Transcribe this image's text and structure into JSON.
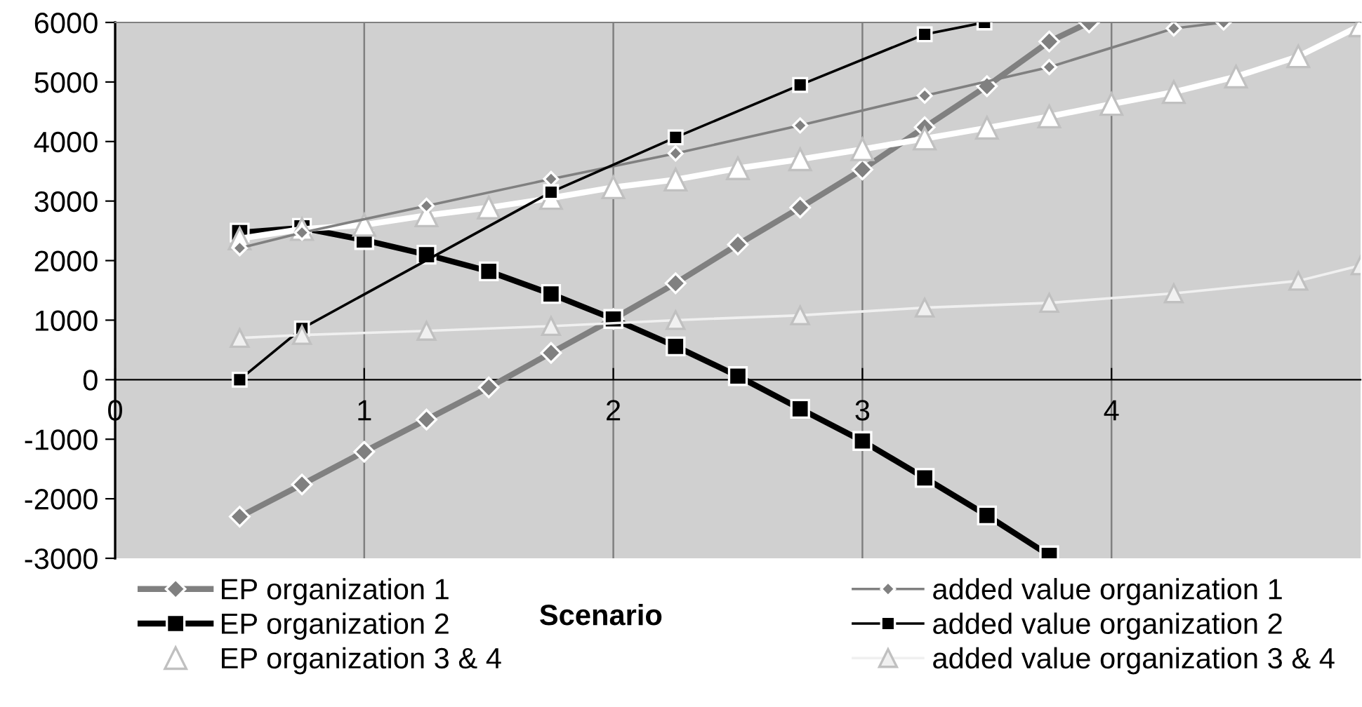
{
  "chart_data": {
    "type": "line",
    "xlabel": "Scenario",
    "xlim": [
      0,
      5
    ],
    "ylim": [
      -3000,
      6000
    ],
    "xticks": [
      0,
      1,
      2,
      3,
      4
    ],
    "yticks": [
      -3000,
      -2000,
      -1000,
      0,
      1000,
      2000,
      3000,
      4000,
      5000,
      6000
    ],
    "grid": "x",
    "legend": "bottom",
    "series": [
      {
        "name": "EP organization 1",
        "color": "#808080",
        "marker": "diamond",
        "x": [
          0.5,
          0.75,
          1,
          1.25,
          1.5,
          1.75,
          2,
          2.25,
          2.5,
          2.75,
          3,
          3.25,
          3.5,
          3.75,
          3.91
        ],
        "values": [
          -2300,
          -1760,
          -1210,
          -670,
          -130,
          450,
          1020,
          1620,
          2270,
          2890,
          3530,
          4240,
          4930,
          5680,
          6000
        ]
      },
      {
        "name": "EP organization 2",
        "color": "#000000",
        "marker": "square",
        "x": [
          0.5,
          0.75,
          1,
          1.25,
          1.5,
          1.75,
          2,
          2.25,
          2.5,
          2.75,
          3,
          3.25,
          3.5,
          3.75
        ],
        "values": [
          2470,
          2550,
          2345,
          2100,
          1820,
          1440,
          1020,
          560,
          60,
          -490,
          -1030,
          -1650,
          -2280,
          -2950
        ]
      },
      {
        "name": "EP organization 3 & 4",
        "color": "#ffffff",
        "marker": "triangle",
        "x": [
          0.5,
          0.75,
          1,
          1.25,
          1.5,
          1.75,
          2,
          2.25,
          2.5,
          2.75,
          3,
          3.25,
          3.5,
          3.75,
          4,
          4.25,
          4.5,
          4.75,
          5
        ],
        "values": [
          2370,
          2530,
          2600,
          2760,
          2890,
          3050,
          3230,
          3360,
          3550,
          3700,
          3870,
          4050,
          4230,
          4420,
          4630,
          4830,
          5090,
          5430,
          5950
        ]
      },
      {
        "name": "added value organization 1",
        "color": "#808080",
        "marker": "diamond",
        "x": [
          0.5,
          0.75,
          1.25,
          1.75,
          2.25,
          2.75,
          3.25,
          3.75,
          4.25,
          4.45
        ],
        "values": [
          2210,
          2470,
          2920,
          3370,
          3800,
          4270,
          4770,
          5250,
          5900,
          6000
        ]
      },
      {
        "name": "added value organization 2",
        "color": "#000000",
        "marker": "square",
        "x": [
          0.5,
          0.75,
          1.75,
          2.25,
          2.75,
          3.25,
          3.49
        ],
        "values": [
          0,
          860,
          3150,
          4070,
          4950,
          5800,
          6000
        ]
      },
      {
        "name": "added value organization 3 & 4",
        "color": "#f0f0f0",
        "marker": "triangle",
        "x": [
          0.5,
          0.75,
          1.25,
          1.75,
          2.25,
          2.75,
          3.25,
          3.75,
          4.25,
          4.75,
          5
        ],
        "values": [
          700,
          750,
          820,
          900,
          1000,
          1080,
          1210,
          1290,
          1450,
          1660,
          1920
        ]
      }
    ]
  }
}
